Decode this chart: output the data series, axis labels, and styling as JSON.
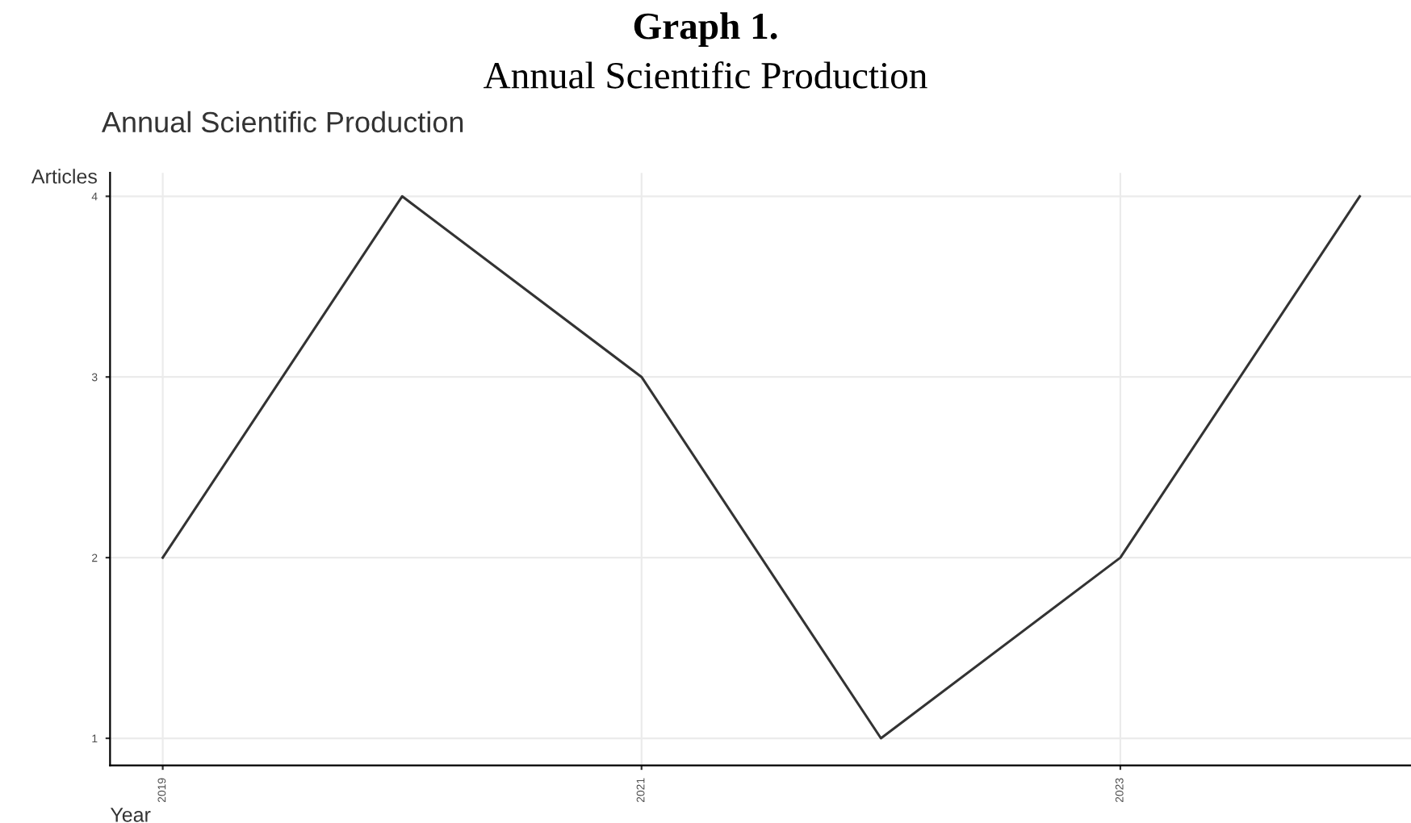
{
  "chart_data": {
    "type": "line",
    "title": "Graph 1.",
    "subtitle": "Annual Scientific Production",
    "annotations": [
      "Annual Scientific Production"
    ],
    "xlabel": "Year",
    "ylabel": "Articles",
    "x": [
      2019,
      2020,
      2021,
      2022,
      2023,
      2024
    ],
    "series": [
      {
        "color": "#333333",
        "values": [
          2,
          4,
          3,
          1,
          2,
          4
        ]
      }
    ],
    "xlim": [
      2018.78,
      2024.22
    ],
    "ylim": [
      0.85,
      4.13
    ],
    "xticks": [
      2019,
      2021,
      2023
    ],
    "yticks": [
      1,
      2,
      3,
      4
    ],
    "grid": true,
    "legend": false,
    "marker": "none",
    "line_style": "solid"
  }
}
